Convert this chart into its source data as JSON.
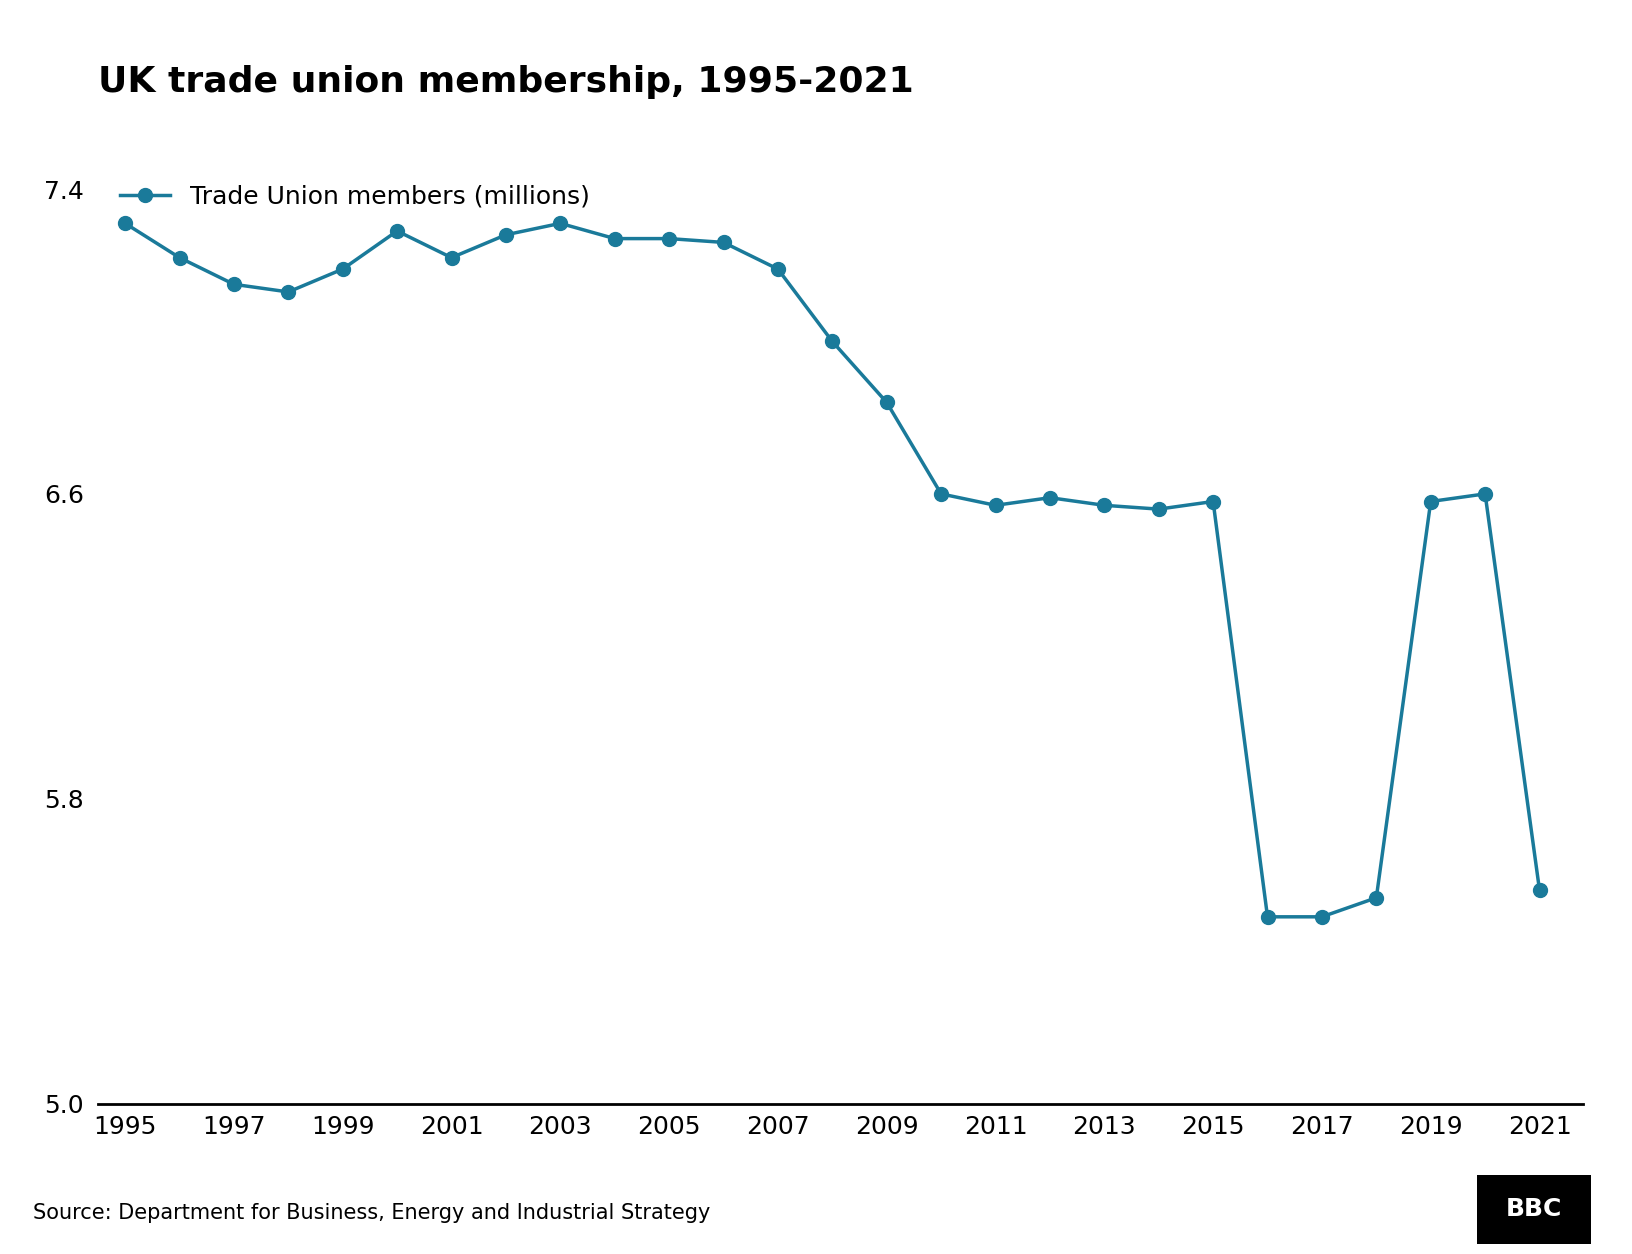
{
  "title": "UK trade union membership, 1995-2021",
  "legend_label": "Trade Union members (millions)",
  "source": "Source: Department for Business, Energy and Industrial Strategy",
  "bbc_logo": "BBC",
  "line_color": "#1a7a9a",
  "marker_color": "#1a7a9a",
  "background_color": "#ffffff",
  "years": [
    1995,
    1996,
    1997,
    1998,
    1999,
    2000,
    2001,
    2002,
    2003,
    2004,
    2005,
    2006,
    2007,
    2008,
    2009,
    2010,
    2011,
    2012,
    2013,
    2014,
    2015,
    2016,
    2017,
    2018,
    2019,
    2020,
    2021
  ],
  "values": [
    7.31,
    7.22,
    7.15,
    7.13,
    7.19,
    7.29,
    7.22,
    7.28,
    7.31,
    7.27,
    7.27,
    7.26,
    7.19,
    7.0,
    6.84,
    6.6,
    6.57,
    6.59,
    6.57,
    6.56,
    6.58,
    5.49,
    5.49,
    5.54,
    6.58,
    6.6,
    5.56
  ],
  "ylim": [
    5.0,
    7.6
  ],
  "yticks": [
    5.0,
    5.8,
    6.6,
    7.4
  ],
  "xticks": [
    1995,
    1997,
    1999,
    2001,
    2003,
    2005,
    2007,
    2009,
    2011,
    2013,
    2015,
    2017,
    2019,
    2021
  ],
  "title_fontsize": 26,
  "legend_fontsize": 18,
  "tick_fontsize": 18,
  "source_fontsize": 15,
  "linewidth": 2.5,
  "markersize": 10,
  "title_fontstyle": "bold"
}
